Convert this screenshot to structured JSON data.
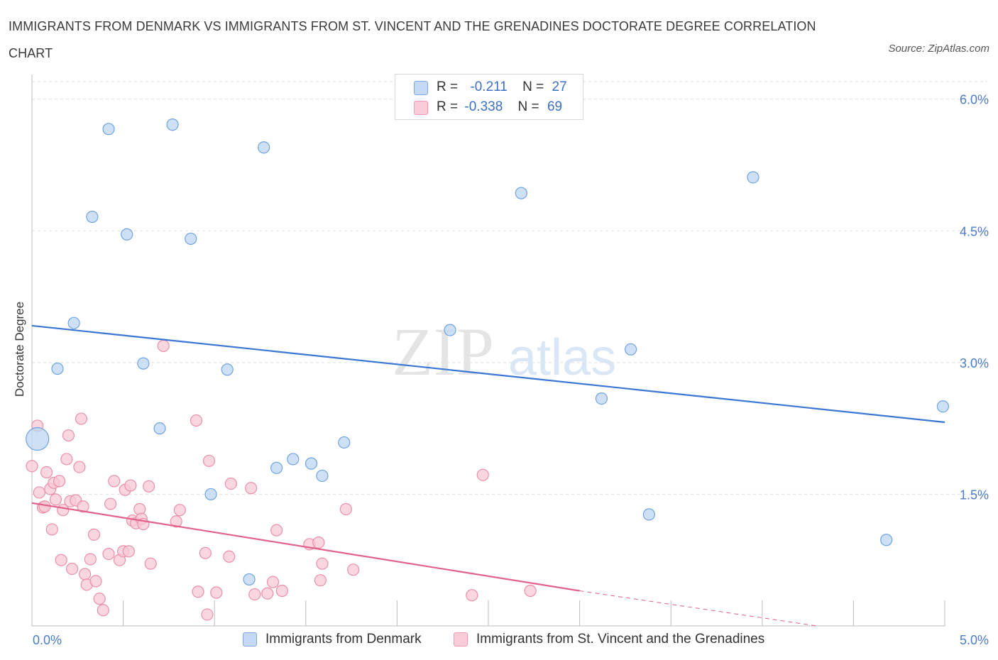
{
  "title": "IMMIGRANTS FROM DENMARK VS IMMIGRANTS FROM ST. VINCENT AND THE GRENADINES DOCTORATE DEGREE CORRELATION CHART",
  "source": "Source: ZipAtlas.com",
  "watermark": {
    "zip": "ZIP",
    "atlas": "atlas"
  },
  "legend": {
    "r_label": "R =",
    "n_label": "N =",
    "rows": [
      {
        "r": "-0.211",
        "n": "27",
        "color": "#a8c8f0"
      },
      {
        "r": "-0.338",
        "n": "69",
        "color": "#f5b8c8"
      }
    ]
  },
  "chart_data": {
    "type": "scatter",
    "title": "IMMIGRANTS FROM DENMARK VS IMMIGRANTS FROM ST. VINCENT AND THE GRENADINES DOCTORATE DEGREE CORRELATION CHART",
    "xlabel": "",
    "ylabel": "Doctorate Degree",
    "xlim": [
      0,
      5.0
    ],
    "ylim": [
      0,
      6.0
    ],
    "x_tick_labels": [
      "0.0%",
      "5.0%"
    ],
    "y_tick_labels": [
      "1.5%",
      "3.0%",
      "4.5%",
      "6.0%"
    ],
    "y_ticks": [
      1.5,
      3.0,
      4.5,
      6.0
    ],
    "grid": true,
    "legend_placement": "bottom",
    "series": [
      {
        "name": "Immigrants from Denmark",
        "color": "#6fa3e0",
        "fill": "#bcd5f3",
        "trend": {
          "x": [
            0.0,
            5.0
          ],
          "y": [
            3.42,
            2.32
          ],
          "color": "#3a77d4"
        },
        "points": [
          {
            "x": 0.03,
            "y": 2.13,
            "big": true
          },
          {
            "x": 0.14,
            "y": 2.93
          },
          {
            "x": 0.23,
            "y": 3.45
          },
          {
            "x": 0.33,
            "y": 4.66
          },
          {
            "x": 0.42,
            "y": 5.66
          },
          {
            "x": 0.52,
            "y": 4.46
          },
          {
            "x": 0.61,
            "y": 2.99
          },
          {
            "x": 0.7,
            "y": 2.25
          },
          {
            "x": 0.77,
            "y": 5.71
          },
          {
            "x": 0.87,
            "y": 4.41
          },
          {
            "x": 0.98,
            "y": 1.5
          },
          {
            "x": 1.07,
            "y": 2.92
          },
          {
            "x": 1.19,
            "y": 0.53
          },
          {
            "x": 1.27,
            "y": 5.45
          },
          {
            "x": 1.34,
            "y": 1.8
          },
          {
            "x": 1.43,
            "y": 1.9
          },
          {
            "x": 1.53,
            "y": 1.85
          },
          {
            "x": 1.59,
            "y": 1.71
          },
          {
            "x": 1.71,
            "y": 2.09
          },
          {
            "x": 2.29,
            "y": 3.37
          },
          {
            "x": 2.68,
            "y": 4.93
          },
          {
            "x": 3.12,
            "y": 2.59
          },
          {
            "x": 3.28,
            "y": 3.15
          },
          {
            "x": 3.38,
            "y": 1.27
          },
          {
            "x": 3.95,
            "y": 5.11
          },
          {
            "x": 4.68,
            "y": 0.98
          },
          {
            "x": 4.99,
            "y": 2.5
          }
        ]
      },
      {
        "name": "Immigrants from St. Vincent and the Grenadines",
        "color": "#ea8fa8",
        "fill": "#f8c9d6",
        "trend": {
          "x": [
            0.0,
            3.0
          ],
          "y": [
            1.4,
            0.4
          ],
          "color": "#e0618c",
          "dash_to": {
            "x": 4.3,
            "y": 0.0
          }
        },
        "points": [
          {
            "x": 0.0,
            "y": 1.82
          },
          {
            "x": 0.03,
            "y": 2.28
          },
          {
            "x": 0.04,
            "y": 1.52
          },
          {
            "x": 0.06,
            "y": 1.35
          },
          {
            "x": 0.07,
            "y": 1.36
          },
          {
            "x": 0.08,
            "y": 1.75
          },
          {
            "x": 0.1,
            "y": 1.56
          },
          {
            "x": 0.11,
            "y": 1.1
          },
          {
            "x": 0.12,
            "y": 1.63
          },
          {
            "x": 0.13,
            "y": 1.44
          },
          {
            "x": 0.15,
            "y": 1.65
          },
          {
            "x": 0.16,
            "y": 0.75
          },
          {
            "x": 0.17,
            "y": 1.32
          },
          {
            "x": 0.19,
            "y": 1.9
          },
          {
            "x": 0.2,
            "y": 2.17
          },
          {
            "x": 0.21,
            "y": 1.42
          },
          {
            "x": 0.22,
            "y": 0.65
          },
          {
            "x": 0.24,
            "y": 1.43
          },
          {
            "x": 0.26,
            "y": 1.81
          },
          {
            "x": 0.27,
            "y": 2.36
          },
          {
            "x": 0.28,
            "y": 1.36
          },
          {
            "x": 0.29,
            "y": 0.59
          },
          {
            "x": 0.3,
            "y": 0.47
          },
          {
            "x": 0.32,
            "y": 0.76
          },
          {
            "x": 0.34,
            "y": 1.04
          },
          {
            "x": 0.35,
            "y": 0.51
          },
          {
            "x": 0.37,
            "y": 0.31
          },
          {
            "x": 0.39,
            "y": 0.18
          },
          {
            "x": 0.42,
            "y": 0.82
          },
          {
            "x": 0.43,
            "y": 1.39
          },
          {
            "x": 0.45,
            "y": 1.65
          },
          {
            "x": 0.48,
            "y": 0.75
          },
          {
            "x": 0.5,
            "y": 0.85
          },
          {
            "x": 0.51,
            "y": 1.55
          },
          {
            "x": 0.53,
            "y": 0.85
          },
          {
            "x": 0.54,
            "y": 1.6
          },
          {
            "x": 0.55,
            "y": 1.2
          },
          {
            "x": 0.57,
            "y": 1.17
          },
          {
            "x": 0.59,
            "y": 1.33
          },
          {
            "x": 0.6,
            "y": 1.22
          },
          {
            "x": 0.61,
            "y": 1.16
          },
          {
            "x": 0.64,
            "y": 1.59
          },
          {
            "x": 0.65,
            "y": 0.71
          },
          {
            "x": 0.72,
            "y": 3.19
          },
          {
            "x": 0.79,
            "y": 1.19
          },
          {
            "x": 0.81,
            "y": 1.32
          },
          {
            "x": 0.9,
            "y": 2.34
          },
          {
            "x": 0.91,
            "y": 0.39
          },
          {
            "x": 0.95,
            "y": 0.83
          },
          {
            "x": 0.96,
            "y": 0.13
          },
          {
            "x": 0.97,
            "y": 1.88
          },
          {
            "x": 1.01,
            "y": 0.38
          },
          {
            "x": 1.08,
            "y": 0.79
          },
          {
            "x": 1.09,
            "y": 1.62
          },
          {
            "x": 1.2,
            "y": 1.57
          },
          {
            "x": 1.22,
            "y": 0.36
          },
          {
            "x": 1.29,
            "y": 0.37
          },
          {
            "x": 1.32,
            "y": 0.5
          },
          {
            "x": 1.34,
            "y": 1.09
          },
          {
            "x": 1.37,
            "y": 0.4
          },
          {
            "x": 1.52,
            "y": 0.93
          },
          {
            "x": 1.57,
            "y": 0.95
          },
          {
            "x": 1.58,
            "y": 0.52
          },
          {
            "x": 1.59,
            "y": 0.71
          },
          {
            "x": 1.72,
            "y": 1.33
          },
          {
            "x": 1.76,
            "y": 0.64
          },
          {
            "x": 2.41,
            "y": 0.35
          },
          {
            "x": 2.47,
            "y": 1.72
          },
          {
            "x": 2.73,
            "y": 0.4
          }
        ]
      }
    ]
  }
}
